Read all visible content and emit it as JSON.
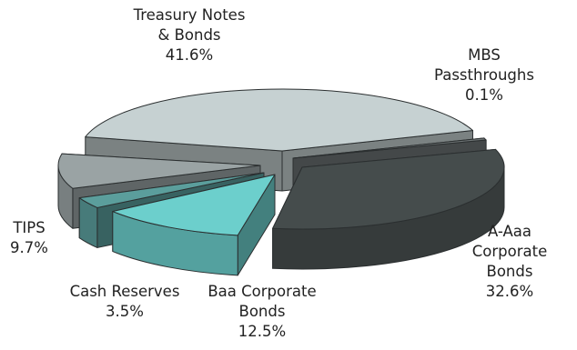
{
  "chart_data": {
    "type": "pie",
    "style": "3d-exploded",
    "slices": [
      {
        "key": "treasury",
        "name_lines": [
          "Treasury Notes",
          "& Bonds"
        ],
        "label": "Treasury Notes & Bonds",
        "value": 41.6,
        "value_label": "41.6%",
        "color": "#c6d1d2"
      },
      {
        "key": "mbs",
        "name_lines": [
          "MBS",
          "Passthroughs"
        ],
        "label": "MBS Passthroughs",
        "value": 0.1,
        "value_label": "0.1%",
        "color": "#6e7475"
      },
      {
        "key": "aaa",
        "name_lines": [
          "A-Aaa",
          "Corporate",
          "Bonds"
        ],
        "label": "A-Aaa Corporate Bonds",
        "value": 32.6,
        "value_label": "32.6%",
        "color": "#454c4c"
      },
      {
        "key": "baa",
        "name_lines": [
          "Baa Corporate",
          "Bonds"
        ],
        "label": "Baa Corporate Bonds",
        "value": 12.5,
        "value_label": "12.5%",
        "color": "#6ccfcc"
      },
      {
        "key": "cash",
        "name_lines": [
          "Cash Reserves"
        ],
        "label": "Cash Reserves",
        "value": 3.5,
        "value_label": "3.5%",
        "color": "#5b9e9c"
      },
      {
        "key": "tips",
        "name_lines": [
          "TIPS"
        ],
        "label": "TIPS",
        "value": 9.7,
        "value_label": "9.7%",
        "color": "#9aa3a4"
      }
    ]
  }
}
